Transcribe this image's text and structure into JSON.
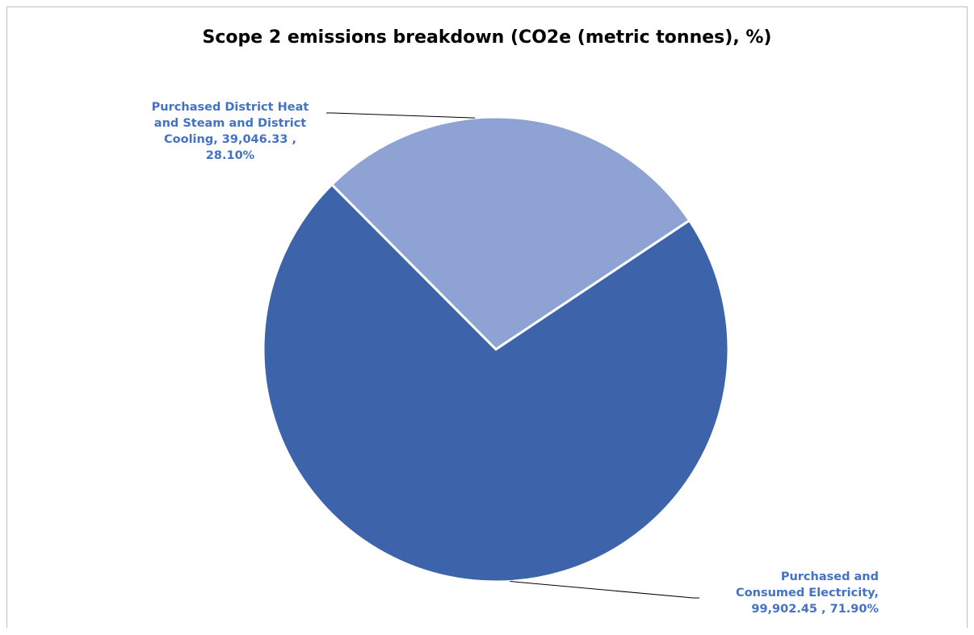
{
  "chart_data": {
    "type": "pie",
    "title": "Scope 2 emissions breakdown (CO2e (metric tonnes), %)",
    "unit": "CO2e (metric tonnes)",
    "slices": [
      {
        "name": "Purchased District Heat and Steam and District Cooling",
        "value": 39046.33,
        "percent": 28.1,
        "color": "#8ea3d4",
        "label_lines": [
          "Purchased District Heat",
          "and Steam and District",
          "Cooling,  39,046.33 ,",
          "28.10%"
        ]
      },
      {
        "name": "Purchased and Consumed Electricity",
        "value": 99902.45,
        "percent": 71.9,
        "color": "#3d64ab",
        "label_lines": [
          "Purchased and",
          "Consumed Electricity,",
          "99,902.45 , 71.90%"
        ]
      }
    ],
    "legend": "none",
    "leader_line_color": "#000000"
  }
}
